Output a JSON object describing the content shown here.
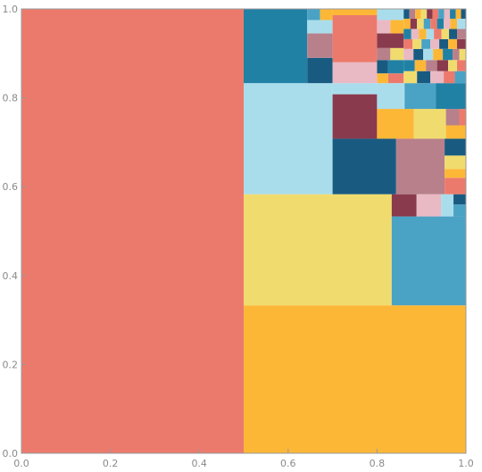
{
  "chart_data": {
    "type": "treemap",
    "title": "",
    "xlabel": "",
    "ylabel": "",
    "xlim": [
      0,
      1
    ],
    "ylim": [
      0,
      1
    ],
    "x_ticks": [
      "0.0",
      "0.2",
      "0.4",
      "0.6",
      "0.8",
      "1.0"
    ],
    "y_ticks": [
      "0.0",
      "0.2",
      "0.4",
      "0.6",
      "0.8",
      "1.0"
    ],
    "grid": false,
    "palette": {
      "salmon": "#ec7a6c",
      "amber": "#fdb737",
      "yellow": "#f0dc6e",
      "lightblue": "#a9ddec",
      "teal": "#2181a5",
      "steel": "#4aa2c5",
      "navy": "#195a81",
      "plum": "#8a3a4d",
      "mauve": "#b7808a",
      "pink": "#e9b9c4"
    },
    "rects": [
      {
        "x0": 0.0,
        "x1": 0.5,
        "y0": 0.0,
        "y1": 1.0,
        "color": "salmon"
      },
      {
        "x0": 0.5,
        "x1": 1.0,
        "y0": 0.0,
        "y1": 0.333,
        "color": "amber"
      },
      {
        "x0": 0.5,
        "x1": 0.833,
        "y0": 0.333,
        "y1": 0.583,
        "color": "yellow"
      },
      {
        "x0": 0.833,
        "x1": 1.0,
        "y0": 0.333,
        "y1": 0.533,
        "color": "steel"
      },
      {
        "x0": 0.833,
        "x1": 0.889,
        "y0": 0.533,
        "y1": 0.583,
        "color": "plum"
      },
      {
        "x0": 0.889,
        "x1": 0.944,
        "y0": 0.533,
        "y1": 0.583,
        "color": "pink"
      },
      {
        "x0": 0.944,
        "x1": 0.972,
        "y0": 0.533,
        "y1": 0.583,
        "color": "lightblue"
      },
      {
        "x0": 0.972,
        "x1": 1.0,
        "y0": 0.533,
        "y1": 0.56,
        "color": "steel"
      },
      {
        "x0": 0.972,
        "x1": 1.0,
        "y0": 0.56,
        "y1": 0.583,
        "color": "navy"
      },
      {
        "x0": 0.5,
        "x1": 0.7,
        "y0": 0.583,
        "y1": 0.833,
        "color": "lightblue"
      },
      {
        "x0": 0.5,
        "x1": 0.643,
        "y0": 0.833,
        "y1": 1.0,
        "color": "teal"
      },
      {
        "x0": 0.7,
        "x1": 0.843,
        "y0": 0.583,
        "y1": 0.708,
        "color": "navy"
      },
      {
        "x0": 0.843,
        "x1": 0.952,
        "y0": 0.583,
        "y1": 0.708,
        "color": "mauve"
      },
      {
        "x0": 0.952,
        "x1": 1.0,
        "y0": 0.583,
        "y1": 0.62,
        "color": "salmon"
      },
      {
        "x0": 0.952,
        "x1": 1.0,
        "y0": 0.62,
        "y1": 0.64,
        "color": "amber"
      },
      {
        "x0": 0.952,
        "x1": 1.0,
        "y0": 0.64,
        "y1": 0.67,
        "color": "yellow"
      },
      {
        "x0": 0.952,
        "x1": 1.0,
        "y0": 0.67,
        "y1": 0.708,
        "color": "navy"
      },
      {
        "x0": 0.7,
        "x1": 0.8,
        "y0": 0.708,
        "y1": 0.808,
        "color": "plum"
      },
      {
        "x0": 0.8,
        "x1": 0.883,
        "y0": 0.708,
        "y1": 0.775,
        "color": "amber"
      },
      {
        "x0": 0.883,
        "x1": 0.955,
        "y0": 0.708,
        "y1": 0.775,
        "color": "yellow"
      },
      {
        "x0": 0.955,
        "x1": 1.0,
        "y0": 0.708,
        "y1": 0.738,
        "color": "amber"
      },
      {
        "x0": 0.955,
        "x1": 0.985,
        "y0": 0.738,
        "y1": 0.775,
        "color": "mauve"
      },
      {
        "x0": 0.985,
        "x1": 1.0,
        "y0": 0.738,
        "y1": 0.775,
        "color": "salmon"
      },
      {
        "x0": 0.7,
        "x1": 0.8,
        "y0": 0.808,
        "y1": 0.833,
        "color": "lightblue"
      },
      {
        "x0": 0.8,
        "x1": 0.862,
        "y0": 0.775,
        "y1": 0.833,
        "color": "lightblue"
      },
      {
        "x0": 0.862,
        "x1": 0.932,
        "y0": 0.775,
        "y1": 0.833,
        "color": "steel"
      },
      {
        "x0": 0.932,
        "x1": 1.0,
        "y0": 0.775,
        "y1": 0.833,
        "color": "teal"
      },
      {
        "x0": 0.643,
        "x1": 0.7,
        "y0": 0.833,
        "y1": 0.89,
        "color": "navy"
      },
      {
        "x0": 0.643,
        "x1": 0.7,
        "y0": 0.89,
        "y1": 0.945,
        "color": "mauve"
      },
      {
        "x0": 0.643,
        "x1": 0.7,
        "y0": 0.945,
        "y1": 0.975,
        "color": "lightblue"
      },
      {
        "x0": 0.643,
        "x1": 0.672,
        "y0": 0.975,
        "y1": 1.0,
        "color": "steel"
      },
      {
        "x0": 0.672,
        "x1": 0.7,
        "y0": 0.975,
        "y1": 1.0,
        "color": "amber"
      },
      {
        "x0": 0.7,
        "x1": 0.8,
        "y0": 0.833,
        "y1": 0.88,
        "color": "pink"
      },
      {
        "x0": 0.7,
        "x1": 0.8,
        "y0": 0.88,
        "y1": 0.986,
        "color": "salmon"
      },
      {
        "x0": 0.8,
        "x1": 0.825,
        "y0": 0.833,
        "y1": 0.855,
        "color": "amber"
      },
      {
        "x0": 0.8,
        "x1": 0.825,
        "y0": 0.855,
        "y1": 0.885,
        "color": "navy"
      },
      {
        "x0": 0.825,
        "x1": 0.86,
        "y0": 0.833,
        "y1": 0.855,
        "color": "salmon"
      },
      {
        "x0": 0.825,
        "x1": 0.86,
        "y0": 0.855,
        "y1": 0.885,
        "color": "teal"
      },
      {
        "x0": 0.8,
        "x1": 0.83,
        "y0": 0.885,
        "y1": 0.912,
        "color": "mauve"
      },
      {
        "x0": 0.83,
        "x1": 0.86,
        "y0": 0.885,
        "y1": 0.912,
        "color": "yellow"
      },
      {
        "x0": 0.8,
        "x1": 0.86,
        "y0": 0.912,
        "y1": 0.945,
        "color": "plum"
      },
      {
        "x0": 0.8,
        "x1": 0.83,
        "y0": 0.945,
        "y1": 0.975,
        "color": "pink"
      },
      {
        "x0": 0.83,
        "x1": 0.86,
        "y0": 0.945,
        "y1": 0.975,
        "color": "amber"
      },
      {
        "x0": 0.8,
        "x1": 0.86,
        "y0": 0.975,
        "y1": 1.0,
        "color": "lightblue"
      },
      {
        "x0": 0.86,
        "x1": 0.89,
        "y0": 0.833,
        "y1": 0.86,
        "color": "yellow"
      },
      {
        "x0": 0.89,
        "x1": 0.92,
        "y0": 0.833,
        "y1": 0.86,
        "color": "navy"
      },
      {
        "x0": 0.92,
        "x1": 0.95,
        "y0": 0.833,
        "y1": 0.86,
        "color": "pink"
      },
      {
        "x0": 0.95,
        "x1": 0.975,
        "y0": 0.833,
        "y1": 0.86,
        "color": "salmon"
      },
      {
        "x0": 0.975,
        "x1": 1.0,
        "y0": 0.833,
        "y1": 0.86,
        "color": "steel"
      },
      {
        "x0": 0.86,
        "x1": 0.885,
        "y0": 0.86,
        "y1": 0.885,
        "color": "teal"
      },
      {
        "x0": 0.885,
        "x1": 0.91,
        "y0": 0.86,
        "y1": 0.885,
        "color": "amber"
      },
      {
        "x0": 0.91,
        "x1": 0.935,
        "y0": 0.86,
        "y1": 0.885,
        "color": "mauve"
      },
      {
        "x0": 0.935,
        "x1": 0.96,
        "y0": 0.86,
        "y1": 0.885,
        "color": "plum"
      },
      {
        "x0": 0.96,
        "x1": 0.98,
        "y0": 0.86,
        "y1": 0.885,
        "color": "yellow"
      },
      {
        "x0": 0.98,
        "x1": 1.0,
        "y0": 0.86,
        "y1": 0.885,
        "color": "salmon"
      },
      {
        "x0": 0.86,
        "x1": 0.882,
        "y0": 0.885,
        "y1": 0.91,
        "color": "pink"
      },
      {
        "x0": 0.882,
        "x1": 0.904,
        "y0": 0.885,
        "y1": 0.91,
        "color": "navy"
      },
      {
        "x0": 0.904,
        "x1": 0.926,
        "y0": 0.885,
        "y1": 0.91,
        "color": "lightblue"
      },
      {
        "x0": 0.926,
        "x1": 0.948,
        "y0": 0.885,
        "y1": 0.91,
        "color": "amber"
      },
      {
        "x0": 0.948,
        "x1": 0.97,
        "y0": 0.885,
        "y1": 0.91,
        "color": "teal"
      },
      {
        "x0": 0.97,
        "x1": 0.985,
        "y0": 0.885,
        "y1": 0.91,
        "color": "mauve"
      },
      {
        "x0": 0.985,
        "x1": 1.0,
        "y0": 0.885,
        "y1": 0.91,
        "color": "yellow"
      },
      {
        "x0": 0.86,
        "x1": 0.88,
        "y0": 0.91,
        "y1": 0.932,
        "color": "salmon"
      },
      {
        "x0": 0.88,
        "x1": 0.9,
        "y0": 0.91,
        "y1": 0.932,
        "color": "yellow"
      },
      {
        "x0": 0.9,
        "x1": 0.92,
        "y0": 0.91,
        "y1": 0.932,
        "color": "steel"
      },
      {
        "x0": 0.92,
        "x1": 0.94,
        "y0": 0.91,
        "y1": 0.932,
        "color": "pink"
      },
      {
        "x0": 0.94,
        "x1": 0.96,
        "y0": 0.91,
        "y1": 0.932,
        "color": "navy"
      },
      {
        "x0": 0.96,
        "x1": 0.98,
        "y0": 0.91,
        "y1": 0.932,
        "color": "amber"
      },
      {
        "x0": 0.98,
        "x1": 1.0,
        "y0": 0.91,
        "y1": 0.932,
        "color": "plum"
      },
      {
        "x0": 0.86,
        "x1": 0.877,
        "y0": 0.932,
        "y1": 0.955,
        "color": "teal"
      },
      {
        "x0": 0.877,
        "x1": 0.894,
        "y0": 0.932,
        "y1": 0.955,
        "color": "pink"
      },
      {
        "x0": 0.894,
        "x1": 0.911,
        "y0": 0.932,
        "y1": 0.955,
        "color": "amber"
      },
      {
        "x0": 0.911,
        "x1": 0.928,
        "y0": 0.932,
        "y1": 0.955,
        "color": "lightblue"
      },
      {
        "x0": 0.928,
        "x1": 0.945,
        "y0": 0.932,
        "y1": 0.955,
        "color": "salmon"
      },
      {
        "x0": 0.945,
        "x1": 0.962,
        "y0": 0.932,
        "y1": 0.955,
        "color": "yellow"
      },
      {
        "x0": 0.962,
        "x1": 0.98,
        "y0": 0.932,
        "y1": 0.955,
        "color": "navy"
      },
      {
        "x0": 0.98,
        "x1": 1.0,
        "y0": 0.932,
        "y1": 0.955,
        "color": "mauve"
      },
      {
        "x0": 0.86,
        "x1": 0.875,
        "y0": 0.955,
        "y1": 0.978,
        "color": "amber"
      },
      {
        "x0": 0.875,
        "x1": 0.89,
        "y0": 0.955,
        "y1": 0.978,
        "color": "plum"
      },
      {
        "x0": 0.89,
        "x1": 0.905,
        "y0": 0.955,
        "y1": 0.978,
        "color": "yellow"
      },
      {
        "x0": 0.905,
        "x1": 0.92,
        "y0": 0.955,
        "y1": 0.978,
        "color": "steel"
      },
      {
        "x0": 0.92,
        "x1": 0.935,
        "y0": 0.955,
        "y1": 0.978,
        "color": "salmon"
      },
      {
        "x0": 0.935,
        "x1": 0.95,
        "y0": 0.955,
        "y1": 0.978,
        "color": "teal"
      },
      {
        "x0": 0.95,
        "x1": 0.965,
        "y0": 0.955,
        "y1": 0.978,
        "color": "pink"
      },
      {
        "x0": 0.965,
        "x1": 0.98,
        "y0": 0.955,
        "y1": 0.978,
        "color": "amber"
      },
      {
        "x0": 0.98,
        "x1": 1.0,
        "y0": 0.955,
        "y1": 0.978,
        "color": "lightblue"
      },
      {
        "x0": 0.86,
        "x1": 0.873,
        "y0": 0.978,
        "y1": 1.0,
        "color": "navy"
      },
      {
        "x0": 0.873,
        "x1": 0.886,
        "y0": 0.978,
        "y1": 1.0,
        "color": "mauve"
      },
      {
        "x0": 0.886,
        "x1": 0.899,
        "y0": 0.978,
        "y1": 1.0,
        "color": "amber"
      },
      {
        "x0": 0.899,
        "x1": 0.912,
        "y0": 0.978,
        "y1": 1.0,
        "color": "yellow"
      },
      {
        "x0": 0.912,
        "x1": 0.925,
        "y0": 0.978,
        "y1": 1.0,
        "color": "plum"
      },
      {
        "x0": 0.925,
        "x1": 0.938,
        "y0": 0.978,
        "y1": 1.0,
        "color": "salmon"
      },
      {
        "x0": 0.938,
        "x1": 0.951,
        "y0": 0.978,
        "y1": 1.0,
        "color": "steel"
      },
      {
        "x0": 0.951,
        "x1": 0.964,
        "y0": 0.978,
        "y1": 1.0,
        "color": "pink"
      },
      {
        "x0": 0.964,
        "x1": 0.977,
        "y0": 0.978,
        "y1": 1.0,
        "color": "teal"
      },
      {
        "x0": 0.977,
        "x1": 0.989,
        "y0": 0.978,
        "y1": 1.0,
        "color": "amber"
      },
      {
        "x0": 0.989,
        "x1": 1.0,
        "y0": 0.978,
        "y1": 1.0,
        "color": "navy"
      },
      {
        "x0": 0.7,
        "x1": 0.8,
        "y0": 0.986,
        "y1": 1.0,
        "color": "amber"
      }
    ]
  }
}
